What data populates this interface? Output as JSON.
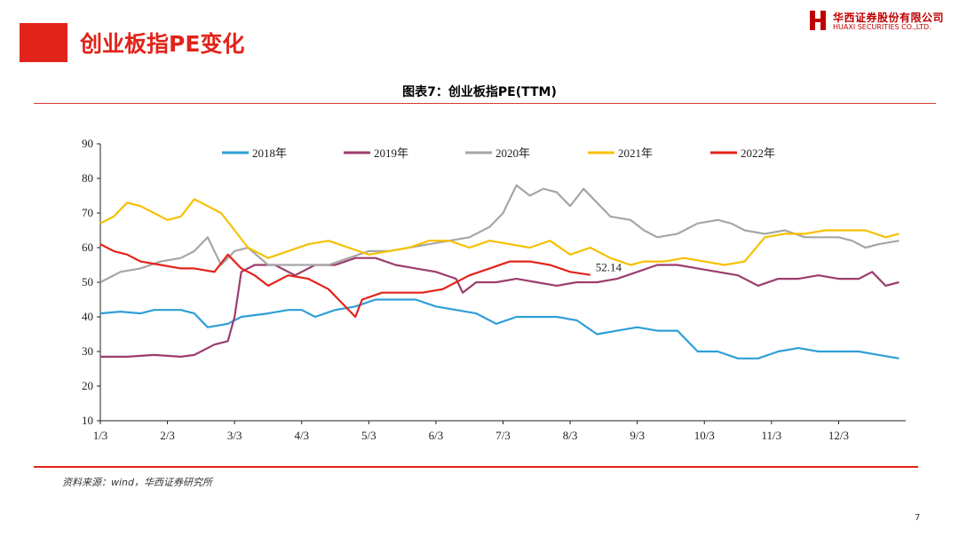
{
  "header": {
    "title": "创业板指PE变化",
    "logo_cn": "华西证券股份有限公司",
    "logo_en": "HUAXI SECURITIES CO.,LTD."
  },
  "chart_title": "图表7：创业板指PE(TTM)",
  "source": "资料来源：wind，华西证券研究所",
  "page_number": "7",
  "chart_data": {
    "type": "line",
    "title": "图表7：创业板指PE(TTM)",
    "xlabel": "",
    "ylabel": "",
    "ylim": [
      10,
      90
    ],
    "yticks": [
      "10",
      "20",
      "30",
      "40",
      "50",
      "60",
      "70",
      "80",
      "90"
    ],
    "xticks": [
      "1/3",
      "2/3",
      "3/3",
      "4/3",
      "5/3",
      "6/3",
      "7/3",
      "8/3",
      "9/3",
      "10/3",
      "11/3",
      "12/3"
    ],
    "x_note": "x values are month positions (1 = Jan 3, 12 = Dec 3)",
    "grid": false,
    "legend_position": "top",
    "annotation": "52.14",
    "series": [
      {
        "name": "2018年",
        "color": "#2e9fd6",
        "points": [
          [
            1,
            41
          ],
          [
            1.3,
            41.5
          ],
          [
            1.6,
            41
          ],
          [
            1.8,
            42
          ],
          [
            2.2,
            42
          ],
          [
            2.4,
            41
          ],
          [
            2.6,
            37
          ],
          [
            2.9,
            38
          ],
          [
            3.1,
            40
          ],
          [
            3.5,
            41
          ],
          [
            3.8,
            42
          ],
          [
            4.0,
            42
          ],
          [
            4.2,
            40
          ],
          [
            4.5,
            42
          ],
          [
            4.8,
            43
          ],
          [
            5.1,
            45
          ],
          [
            5.4,
            45
          ],
          [
            5.7,
            45
          ],
          [
            6.0,
            43
          ],
          [
            6.3,
            42
          ],
          [
            6.6,
            41
          ],
          [
            6.9,
            38
          ],
          [
            7.2,
            40
          ],
          [
            7.5,
            40
          ],
          [
            7.8,
            40
          ],
          [
            8.1,
            39
          ],
          [
            8.4,
            35
          ],
          [
            8.7,
            36
          ],
          [
            9.0,
            37
          ],
          [
            9.3,
            36
          ],
          [
            9.6,
            36
          ],
          [
            9.9,
            30
          ],
          [
            10.2,
            30
          ],
          [
            10.5,
            28
          ],
          [
            10.8,
            28
          ],
          [
            11.1,
            30
          ],
          [
            11.4,
            31
          ],
          [
            11.7,
            30
          ],
          [
            12.0,
            30
          ],
          [
            12.3,
            30
          ],
          [
            12.6,
            29
          ],
          [
            12.9,
            28
          ]
        ]
      },
      {
        "name": "2019年",
        "color": "#9b3d6e",
        "points": [
          [
            1,
            28.5
          ],
          [
            1.4,
            28.5
          ],
          [
            1.8,
            29
          ],
          [
            2.2,
            28.5
          ],
          [
            2.4,
            29
          ],
          [
            2.7,
            32
          ],
          [
            2.9,
            33
          ],
          [
            3.0,
            40
          ],
          [
            3.1,
            53
          ],
          [
            3.3,
            55
          ],
          [
            3.6,
            55
          ],
          [
            3.9,
            52
          ],
          [
            4.2,
            55
          ],
          [
            4.5,
            55
          ],
          [
            4.8,
            57
          ],
          [
            5.1,
            57
          ],
          [
            5.4,
            55
          ],
          [
            5.7,
            54
          ],
          [
            6.0,
            53
          ],
          [
            6.3,
            51
          ],
          [
            6.4,
            47
          ],
          [
            6.6,
            50
          ],
          [
            6.9,
            50
          ],
          [
            7.2,
            51
          ],
          [
            7.5,
            50
          ],
          [
            7.8,
            49
          ],
          [
            8.1,
            50
          ],
          [
            8.4,
            50
          ],
          [
            8.7,
            51
          ],
          [
            9.0,
            53
          ],
          [
            9.3,
            55
          ],
          [
            9.6,
            55
          ],
          [
            9.9,
            54
          ],
          [
            10.2,
            53
          ],
          [
            10.5,
            52
          ],
          [
            10.8,
            49
          ],
          [
            11.1,
            51
          ],
          [
            11.4,
            51
          ],
          [
            11.7,
            52
          ],
          [
            12.0,
            51
          ],
          [
            12.3,
            51
          ],
          [
            12.5,
            53
          ],
          [
            12.7,
            49
          ],
          [
            12.9,
            50
          ]
        ]
      },
      {
        "name": "2020年",
        "color": "#a6a6a6",
        "points": [
          [
            1,
            50
          ],
          [
            1.3,
            53
          ],
          [
            1.6,
            54
          ],
          [
            1.9,
            56
          ],
          [
            2.2,
            57
          ],
          [
            2.4,
            59
          ],
          [
            2.6,
            63
          ],
          [
            2.8,
            55
          ],
          [
            3.0,
            59
          ],
          [
            3.2,
            60
          ],
          [
            3.5,
            55
          ],
          [
            3.8,
            55
          ],
          [
            4.1,
            55
          ],
          [
            4.4,
            55
          ],
          [
            4.7,
            57
          ],
          [
            5.0,
            59
          ],
          [
            5.3,
            59
          ],
          [
            5.6,
            60
          ],
          [
            5.9,
            61
          ],
          [
            6.2,
            62
          ],
          [
            6.5,
            63
          ],
          [
            6.8,
            66
          ],
          [
            7.0,
            70
          ],
          [
            7.2,
            78
          ],
          [
            7.4,
            75
          ],
          [
            7.6,
            77
          ],
          [
            7.8,
            76
          ],
          [
            8.0,
            72
          ],
          [
            8.2,
            77
          ],
          [
            8.4,
            73
          ],
          [
            8.6,
            69
          ],
          [
            8.9,
            68
          ],
          [
            9.1,
            65
          ],
          [
            9.3,
            63
          ],
          [
            9.6,
            64
          ],
          [
            9.9,
            67
          ],
          [
            10.2,
            68
          ],
          [
            10.4,
            67
          ],
          [
            10.6,
            65
          ],
          [
            10.9,
            64
          ],
          [
            11.2,
            65
          ],
          [
            11.5,
            63
          ],
          [
            11.8,
            63
          ],
          [
            12.0,
            63
          ],
          [
            12.2,
            62
          ],
          [
            12.4,
            60
          ],
          [
            12.6,
            61
          ],
          [
            12.9,
            62
          ]
        ]
      },
      {
        "name": "2021年",
        "color": "#f5c000",
        "points": [
          [
            1,
            67
          ],
          [
            1.2,
            69
          ],
          [
            1.4,
            73
          ],
          [
            1.6,
            72
          ],
          [
            1.8,
            70
          ],
          [
            2.0,
            68
          ],
          [
            2.2,
            69
          ],
          [
            2.4,
            74
          ],
          [
            2.6,
            72
          ],
          [
            2.8,
            70
          ],
          [
            3.0,
            65
          ],
          [
            3.2,
            60
          ],
          [
            3.5,
            57
          ],
          [
            3.8,
            59
          ],
          [
            4.1,
            61
          ],
          [
            4.4,
            62
          ],
          [
            4.7,
            60
          ],
          [
            5.0,
            58
          ],
          [
            5.3,
            59
          ],
          [
            5.6,
            60
          ],
          [
            5.9,
            62
          ],
          [
            6.2,
            62
          ],
          [
            6.5,
            60
          ],
          [
            6.8,
            62
          ],
          [
            7.1,
            61
          ],
          [
            7.4,
            60
          ],
          [
            7.7,
            62
          ],
          [
            8.0,
            58
          ],
          [
            8.3,
            60
          ],
          [
            8.6,
            57
          ],
          [
            8.9,
            55
          ],
          [
            9.1,
            56
          ],
          [
            9.4,
            56
          ],
          [
            9.7,
            57
          ],
          [
            10.0,
            56
          ],
          [
            10.3,
            55
          ],
          [
            10.6,
            56
          ],
          [
            10.9,
            63
          ],
          [
            11.2,
            64
          ],
          [
            11.5,
            64
          ],
          [
            11.8,
            65
          ],
          [
            12.1,
            65
          ],
          [
            12.4,
            65
          ],
          [
            12.7,
            63
          ],
          [
            12.9,
            64
          ]
        ]
      },
      {
        "name": "2022年",
        "color": "#e2231a",
        "points": [
          [
            1,
            61
          ],
          [
            1.2,
            59
          ],
          [
            1.4,
            58
          ],
          [
            1.6,
            56
          ],
          [
            1.9,
            55
          ],
          [
            2.2,
            54
          ],
          [
            2.4,
            54
          ],
          [
            2.7,
            53
          ],
          [
            2.9,
            58
          ],
          [
            3.1,
            54
          ],
          [
            3.3,
            52
          ],
          [
            3.5,
            49
          ],
          [
            3.8,
            52
          ],
          [
            4.1,
            51
          ],
          [
            4.4,
            48
          ],
          [
            4.6,
            44
          ],
          [
            4.8,
            40
          ],
          [
            4.9,
            45
          ],
          [
            5.2,
            47
          ],
          [
            5.5,
            47
          ],
          [
            5.8,
            47
          ],
          [
            6.1,
            48
          ],
          [
            6.3,
            50
          ],
          [
            6.5,
            52
          ],
          [
            6.8,
            54
          ],
          [
            7.1,
            56
          ],
          [
            7.4,
            56
          ],
          [
            7.7,
            55
          ],
          [
            8.0,
            53
          ],
          [
            8.3,
            52.14
          ]
        ]
      }
    ]
  }
}
